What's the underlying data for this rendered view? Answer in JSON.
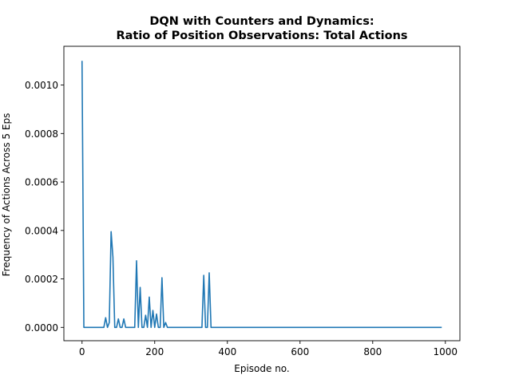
{
  "chart_data": {
    "type": "line",
    "title": "DQN with Counters and Dynamics:",
    "subtitle": "Ratio of Position Observations: Total Actions",
    "xlabel": "Episode no.",
    "ylabel": "Frequency of Actions Across 5 Eps",
    "xlim": [
      -50,
      1040
    ],
    "ylim": [
      -5.5e-05,
      0.00116
    ],
    "xticks": [
      0,
      200,
      400,
      600,
      800,
      1000
    ],
    "xtick_labels": [
      "0",
      "200",
      "400",
      "600",
      "800",
      "1000"
    ],
    "yticks": [
      0,
      0.0002,
      0.0004,
      0.0006,
      0.0008,
      0.001
    ],
    "ytick_labels": [
      "0.0000",
      "0.0002",
      "0.0004",
      "0.0006",
      "0.0008",
      "0.0010"
    ],
    "grid": false,
    "color": "#1f77b4",
    "series": [
      {
        "x": [
          0,
          5,
          10,
          60,
          65,
          70,
          75,
          80,
          85,
          90,
          95,
          100,
          105,
          110,
          115,
          120,
          140,
          145,
          150,
          155,
          160,
          165,
          170,
          175,
          180,
          185,
          190,
          195,
          200,
          205,
          210,
          215,
          220,
          225,
          230,
          235,
          240,
          330,
          335,
          340,
          345,
          350,
          355,
          360,
          990
        ],
        "y": [
          0.0011,
          0,
          0,
          0,
          4e-05,
          0,
          2e-05,
          0.000395,
          0.00029,
          0,
          0,
          3.5e-05,
          0,
          0,
          3.5e-05,
          0,
          0,
          0,
          0.000275,
          0,
          0.000165,
          0,
          0,
          5e-05,
          0,
          0.000125,
          0,
          7e-05,
          0,
          5.5e-05,
          0,
          0,
          0.000205,
          0,
          2e-05,
          0,
          0,
          0,
          0.000215,
          0,
          0,
          0.000225,
          0,
          0,
          0
        ]
      }
    ]
  }
}
